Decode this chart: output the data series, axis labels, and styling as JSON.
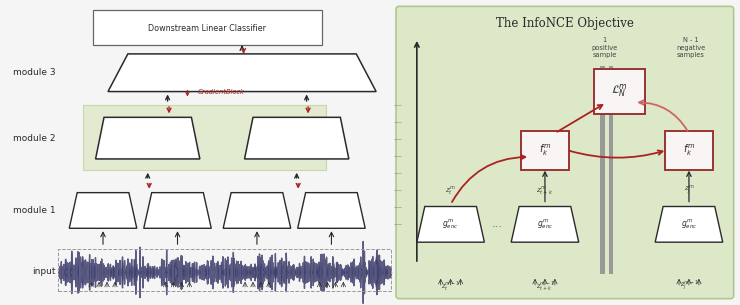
{
  "bg_color": "#f5f5f5",
  "left_labels": [
    "module 3",
    "module 2",
    "module 1",
    "input"
  ],
  "gradient_block_text": "GradientBlock",
  "classifier_text": "Downstream Linear Classifier",
  "infonce_title": "The InfoNCE Objective",
  "pos_label": "1\npositive\nsample",
  "neg_label": "N - 1\nnegative\nsamples",
  "red_color": "#aa2222",
  "dark_red": "#8b0000",
  "light_red": "#cc8888",
  "green_bg": "#dde8c8",
  "green_bg2": "#e2ead0",
  "dark_color": "#2a2a2a",
  "gray_color": "#666666",
  "enc_label": "$g^m_{enc}$",
  "fk_label": "$f^m_k$",
  "loss_label": "$\\mathcal{L}^m_N$"
}
